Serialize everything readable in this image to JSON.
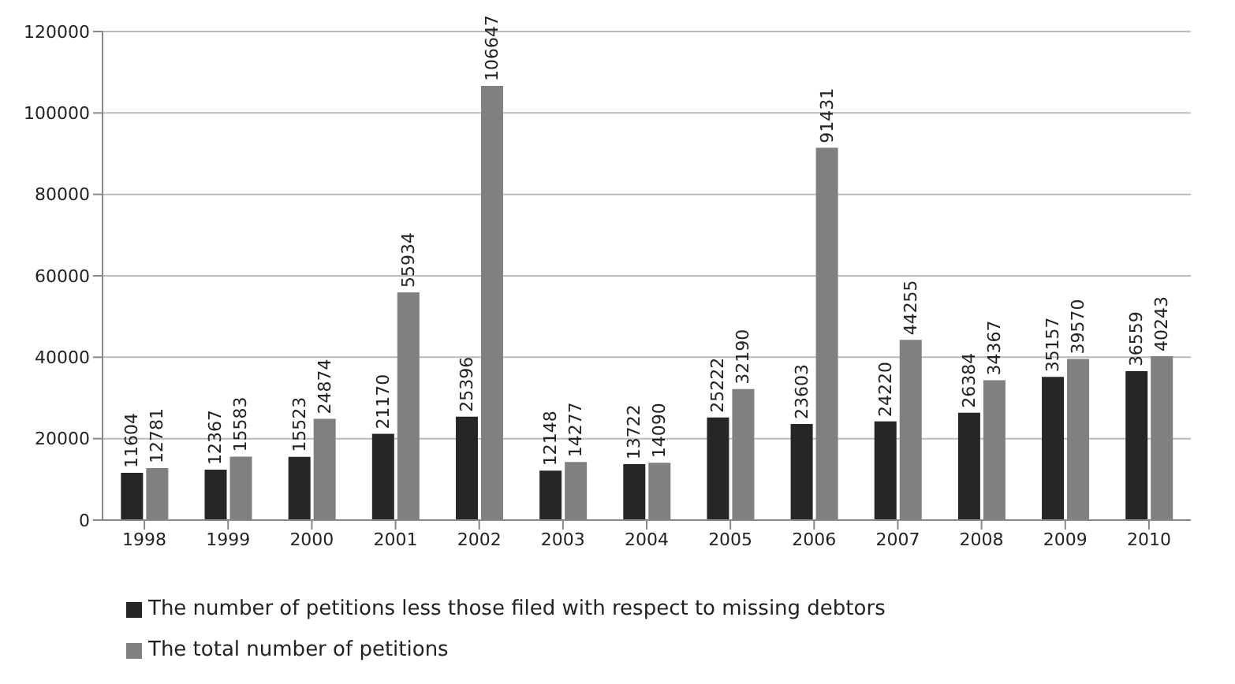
{
  "chart_data": {
    "type": "bar",
    "categories": [
      "1998",
      "1999",
      "2000",
      "2001",
      "2002",
      "2003",
      "2004",
      "2005",
      "2006",
      "2007",
      "2008",
      "2009",
      "2010"
    ],
    "series": [
      {
        "name": "The number of petitions less those filed with respect to missing debtors",
        "color": "#262626",
        "values": [
          11604,
          12367,
          15523,
          21170,
          25396,
          12148,
          13722,
          25222,
          23603,
          24220,
          26384,
          35157,
          36559
        ]
      },
      {
        "name": "The total number of petitions",
        "color": "#808080",
        "values": [
          12781,
          15583,
          24874,
          55934,
          106647,
          14277,
          14090,
          32190,
          91431,
          44255,
          34367,
          39570,
          40243
        ]
      }
    ],
    "ylim": [
      0,
      120000
    ],
    "yticks": [
      0,
      20000,
      40000,
      60000,
      80000,
      100000,
      120000
    ],
    "grid": "y",
    "legend": "bottom",
    "data_labels": true
  }
}
